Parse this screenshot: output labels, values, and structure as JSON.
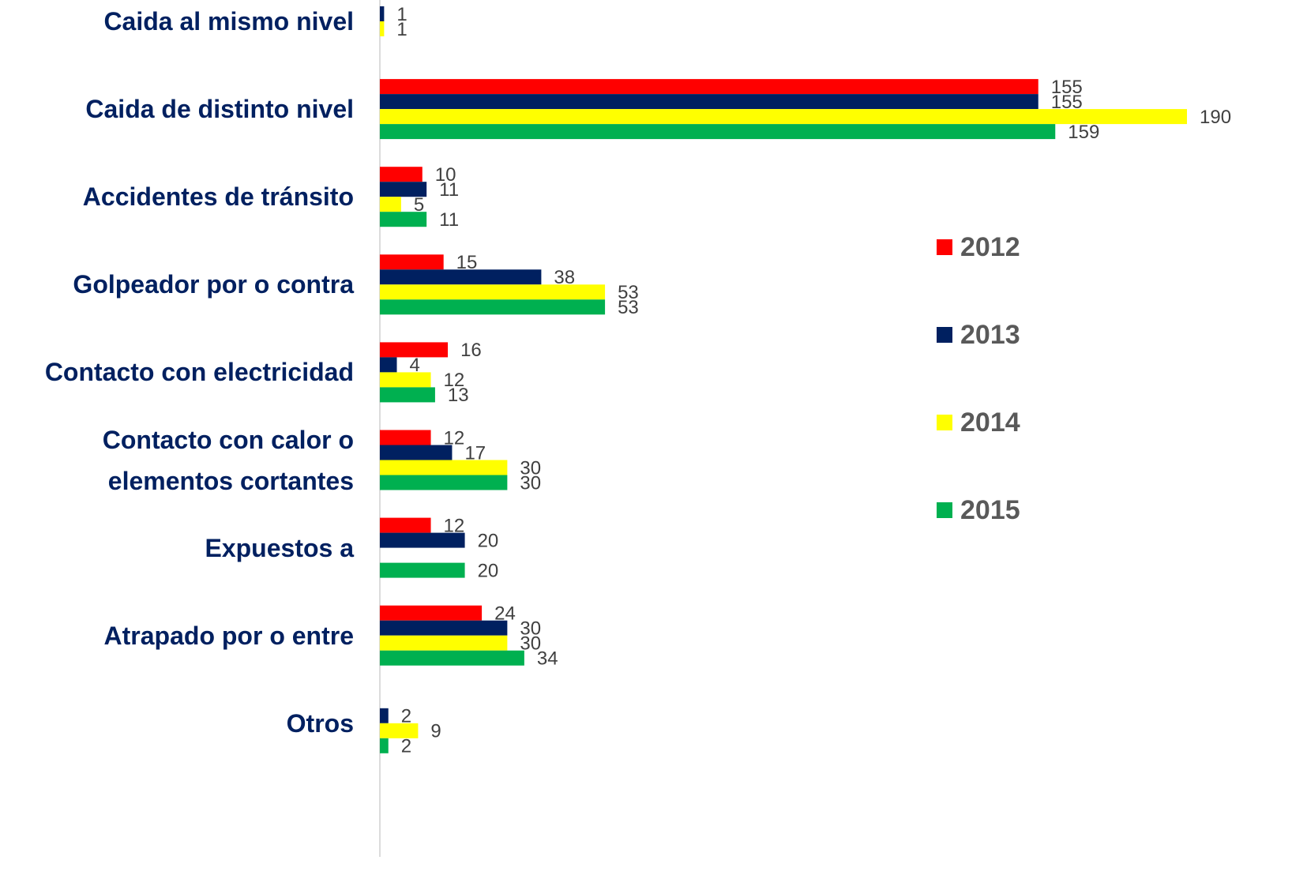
{
  "chart_data": {
    "type": "hbar",
    "categories": [
      "Caida al mismo nivel",
      "Caida de distinto nivel",
      "Accidentes de tránsito",
      "Golpeador por o contra",
      "Contacto con electricidad",
      "Contacto con calor o\nelementos cortantes",
      "Expuestos a",
      "Atrapado por o entre",
      "Otros"
    ],
    "series": [
      {
        "name": "2012",
        "color": "#ff0000",
        "values": [
          null,
          155,
          10,
          15,
          16,
          12,
          12,
          24,
          null
        ]
      },
      {
        "name": "2013",
        "color": "#002060",
        "values": [
          1,
          155,
          11,
          38,
          4,
          17,
          20,
          30,
          2
        ]
      },
      {
        "name": "2014",
        "color": "#ffff00",
        "values": [
          1,
          190,
          5,
          53,
          12,
          30,
          null,
          30,
          9
        ]
      },
      {
        "name": "2015",
        "color": "#00b050",
        "values": [
          null,
          159,
          11,
          53,
          13,
          30,
          20,
          34,
          2
        ]
      }
    ],
    "xlim": [
      0,
      190
    ],
    "legend": "right"
  }
}
